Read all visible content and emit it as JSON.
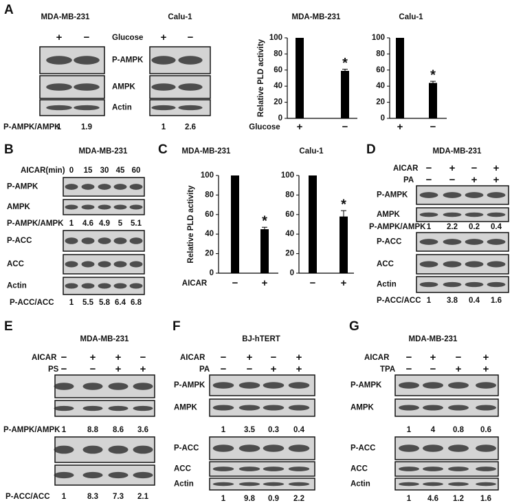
{
  "panel_letters": [
    "A",
    "B",
    "C",
    "D",
    "E",
    "F",
    "G"
  ],
  "blots": [
    {
      "title": "MDA-MB-231",
      "conditions": [
        {
          "label": "Glucose",
          "values": [
            "+",
            "−"
          ]
        }
      ],
      "rows": [
        "P-AMPK",
        "AMPK",
        "Actin"
      ],
      "ratios": [
        {
          "label": "P-AMPK/AMPK",
          "values": [
            1,
            1.9
          ]
        }
      ]
    },
    {
      "title": "Calu-1",
      "conditions": [
        {
          "values": [
            "+",
            "−"
          ]
        }
      ],
      "rows": [
        null,
        null,
        null
      ],
      "ratios": [
        {
          "values": [
            1,
            2.6
          ]
        }
      ]
    },
    {
      "title": "MDA-MB-231",
      "conditions": [
        {
          "label": "AICAR(min)",
          "values": [
            0,
            15,
            30,
            45,
            60
          ]
        }
      ],
      "rows": [
        "P-AMPK",
        "AMPK",
        "P-ACC",
        "ACC",
        "Actin"
      ],
      "ratios": [
        {
          "label": "P-AMPK/AMPK",
          "values": [
            1,
            4.6,
            4.9,
            5,
            5.1
          ]
        },
        {
          "label": "P-ACC/ACC",
          "values": [
            1,
            5.5,
            5.8,
            6.4,
            6.8
          ]
        }
      ]
    },
    {
      "title": "MDA-MB-231",
      "conditions": [
        {
          "label": "AICAR",
          "values": [
            "−",
            "+",
            "−",
            "+"
          ]
        },
        {
          "label": "PA",
          "values": [
            "−",
            "−",
            "+",
            "+"
          ]
        }
      ],
      "rows": [
        "P-AMPK",
        "AMPK",
        "P-ACC",
        "ACC",
        "Actin"
      ],
      "ratios": [
        {
          "label": "P-AMPK/AMPK",
          "values": [
            1,
            2.2,
            0.2,
            0.4
          ]
        },
        {
          "label": "P-ACC/ACC",
          "values": [
            1,
            3.8,
            0.4,
            1.6
          ]
        }
      ]
    },
    {
      "title": "MDA-MB-231",
      "conditions": [
        {
          "label": "AICAR",
          "values": [
            "−",
            "+",
            "+",
            "−"
          ]
        },
        {
          "label": "PS",
          "values": [
            "−",
            "−",
            "+",
            "+"
          ]
        }
      ],
      "rows": [
        null,
        null,
        null,
        null
      ],
      "ratios": [
        {
          "label": "P-AMPK/AMPK",
          "values": [
            1,
            8.8,
            8.6,
            3.6
          ]
        },
        {
          "label": "P-ACC/ACC",
          "values": [
            1,
            8.3,
            7.3,
            2.1
          ]
        }
      ]
    },
    {
      "title": "BJ-hTERT",
      "conditions": [
        {
          "label": "AICAR",
          "values": [
            "−",
            "+",
            "−",
            "+"
          ]
        },
        {
          "label": "PA",
          "values": [
            "−",
            "−",
            "+",
            "+"
          ]
        }
      ],
      "rows": [
        "P-AMPK",
        "AMPK",
        "P-ACC",
        "ACC",
        "Actin"
      ],
      "ratios": [
        {
          "values": [
            1,
            3.5,
            0.3,
            0.4
          ]
        },
        {
          "values": [
            1,
            9.8,
            0.9,
            2.2
          ]
        }
      ]
    },
    {
      "title": "MDA-MB-231",
      "conditions": [
        {
          "label": "AICAR",
          "values": [
            "−",
            "+",
            "−",
            "+"
          ]
        },
        {
          "label": "TPA",
          "values": [
            "−",
            "−",
            "+",
            "+"
          ]
        }
      ],
      "rows": [
        "P-AMPK",
        "AMPK",
        "P-ACC",
        "ACC",
        "Actin"
      ],
      "ratios": [
        {
          "values": [
            1,
            4,
            0.8,
            0.6
          ]
        },
        {
          "values": [
            1,
            4.6,
            1.2,
            1.6
          ]
        }
      ]
    }
  ],
  "chart_data": [
    {
      "type": "bar",
      "title": "MDA-MB-231",
      "y_label": "Relative PLD activity",
      "x_label": "Glucose",
      "categories": [
        "+",
        "−"
      ],
      "values": [
        100,
        59
      ],
      "errors": [
        null,
        2
      ],
      "color": "#000000",
      "annotation": "*",
      "ylim": [
        0,
        100
      ],
      "yticks": [
        0,
        20,
        40,
        60,
        80,
        100
      ]
    },
    {
      "type": "bar",
      "title": "Calu-1",
      "categories": [
        "+",
        "−"
      ],
      "values": [
        100,
        44
      ],
      "errors": [
        null,
        2
      ],
      "color": "#000000",
      "annotation": "*",
      "ylim": [
        0,
        100
      ],
      "yticks": [
        0,
        20,
        40,
        60,
        80,
        100
      ]
    },
    {
      "type": "bar",
      "title": "MDA-MB-231",
      "y_label": "Relative PLD activity",
      "x_label": "AICAR",
      "categories": [
        "−",
        "+"
      ],
      "values": [
        100,
        45
      ],
      "errors": [
        null,
        2
      ],
      "color": "#000000",
      "annotation": "*",
      "ylim": [
        0,
        100
      ],
      "yticks": [
        0,
        20,
        40,
        60,
        80,
        100
      ]
    },
    {
      "type": "bar",
      "title": "Calu-1",
      "categories": [
        "−",
        "+"
      ],
      "values": [
        100,
        58
      ],
      "errors": [
        null,
        6
      ],
      "color": "#000000",
      "annotation": "*",
      "ylim": [
        0,
        100
      ],
      "yticks": [
        0,
        20,
        40,
        60,
        80,
        100
      ]
    }
  ]
}
